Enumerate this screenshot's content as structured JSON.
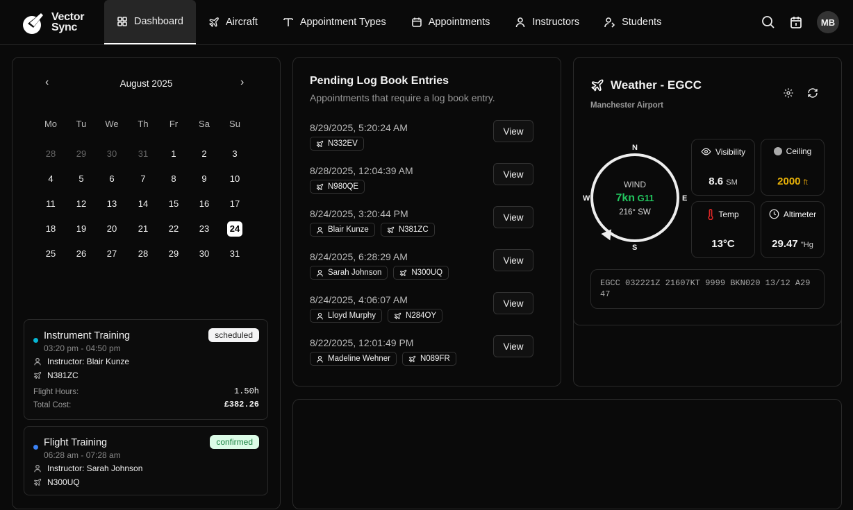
{
  "app": {
    "logo_line1": "Vector",
    "logo_line2": "Sync"
  },
  "nav": {
    "tabs": [
      {
        "label": "Dashboard",
        "icon": "grid-icon"
      },
      {
        "label": "Aircraft",
        "icon": "plane-icon"
      },
      {
        "label": "Appointment Types",
        "icon": "type-icon"
      },
      {
        "label": "Appointments",
        "icon": "calendar-icon"
      },
      {
        "label": "Instructors",
        "icon": "user-icon"
      },
      {
        "label": "Students",
        "icon": "users-icon"
      }
    ],
    "active": "Dashboard",
    "avatar": "MB"
  },
  "calendar": {
    "month": "August 2025",
    "weekdays": [
      "Mo",
      "Tu",
      "We",
      "Th",
      "Fr",
      "Sa",
      "Su"
    ],
    "weeks": [
      [
        "28",
        "29",
        "30",
        "31",
        "1",
        "2",
        "3"
      ],
      [
        "4",
        "5",
        "6",
        "7",
        "8",
        "9",
        "10"
      ],
      [
        "11",
        "12",
        "13",
        "14",
        "15",
        "16",
        "17"
      ],
      [
        "18",
        "19",
        "20",
        "21",
        "22",
        "23",
        "24"
      ],
      [
        "25",
        "26",
        "27",
        "28",
        "29",
        "30",
        "31"
      ]
    ],
    "today": "24"
  },
  "appointments": [
    {
      "title": "Instrument Training",
      "time": "03:20 pm - 04:50 pm",
      "instructor": "Instructor: Blair Kunze",
      "aircraft": "N381ZC",
      "status": "scheduled",
      "dot": "#06b6d4",
      "hours_label": "Flight Hours:",
      "hours": "1.50h",
      "cost_label": "Total Cost:",
      "cost": "£382.26"
    },
    {
      "title": "Flight Training",
      "time": "06:28 am - 07:28 am",
      "instructor": "Instructor: Sarah Johnson",
      "aircraft": "N300UQ",
      "status": "confirmed",
      "dot": "#3b82f6"
    }
  ],
  "pending": {
    "title": "Pending Log Book Entries",
    "subtitle": "Appointments that require a log book entry.",
    "view_label": "View",
    "entries": [
      {
        "date": "8/29/2025, 5:20:24 AM",
        "person": null,
        "aircraft": "N332EV"
      },
      {
        "date": "8/28/2025, 12:04:39 AM",
        "person": null,
        "aircraft": "N980QE"
      },
      {
        "date": "8/24/2025, 3:20:44 PM",
        "person": "Blair Kunze",
        "aircraft": "N381ZC"
      },
      {
        "date": "8/24/2025, 6:28:29 AM",
        "person": "Sarah Johnson",
        "aircraft": "N300UQ"
      },
      {
        "date": "8/24/2025, 4:06:07 AM",
        "person": "Lloyd Murphy",
        "aircraft": "N284OY"
      },
      {
        "date": "8/22/2025, 12:01:49 PM",
        "person": "Madeline Wehner",
        "aircraft": "N089FR"
      }
    ]
  },
  "weather": {
    "title": "Weather - EGCC",
    "subtitle": "Manchester Airport",
    "compass": {
      "n": "N",
      "e": "E",
      "s": "S",
      "w": "W"
    },
    "wind_label": "WIND",
    "wind_speed": "7kn",
    "wind_gust": "G11",
    "wind_dir": "216° SW",
    "wind_degrees": 216,
    "visibility_label": "Visibility",
    "visibility": "8.6",
    "visibility_unit": "SM",
    "ceiling_label": "Ceiling",
    "ceiling": "2000",
    "ceiling_unit": "ft",
    "temp_label": "Temp",
    "temp": "13°C",
    "altimeter_label": "Altimeter",
    "altimeter": "29.47",
    "altimeter_unit": "\"Hg",
    "metar": "EGCC 032221Z 21607KT 9999 BKN020 13/12 A2947",
    "colors": {
      "wind": "#22c55e",
      "ceiling": "#eab308",
      "temp_icon": "#dc2626"
    }
  }
}
